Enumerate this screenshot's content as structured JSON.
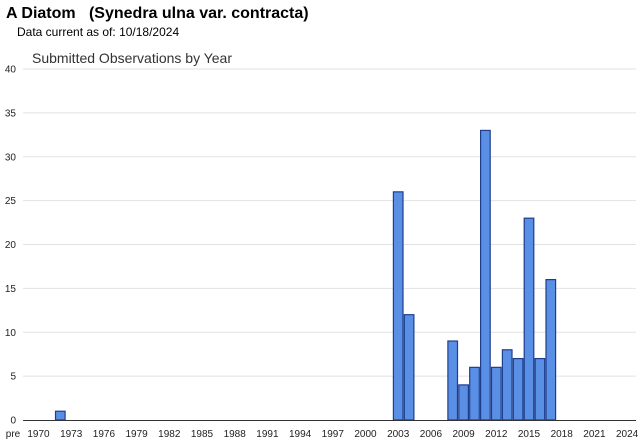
{
  "header": {
    "title": "A Diatom   (Synedra ulna var. contracta)",
    "data_current_label": "Data current as of:",
    "data_current_date": "10/18/2024"
  },
  "chart_data": {
    "type": "bar",
    "title": "Submitted Observations by Year",
    "xlabel": "",
    "ylabel": "",
    "ylim": [
      0,
      40
    ],
    "yticks": [
      0,
      5,
      10,
      15,
      20,
      25,
      30,
      35,
      40
    ],
    "grid": true,
    "legend": "none",
    "bar_color": "#5a8fe6",
    "bar_edge_color": "#1f3d8a",
    "xtick_labels": [
      "pre",
      "1970",
      "1973",
      "1976",
      "1979",
      "1982",
      "1985",
      "1988",
      "1991",
      "1994",
      "1997",
      "2000",
      "2003",
      "2006",
      "2009",
      "2012",
      "2015",
      "2018",
      "2021",
      "2024"
    ],
    "categories": [
      "pre",
      "1970",
      "1971",
      "1972",
      "1973",
      "1974",
      "1975",
      "1976",
      "1977",
      "1978",
      "1979",
      "1980",
      "1981",
      "1982",
      "1983",
      "1984",
      "1985",
      "1986",
      "1987",
      "1988",
      "1989",
      "1990",
      "1991",
      "1992",
      "1993",
      "1994",
      "1995",
      "1996",
      "1997",
      "1998",
      "1999",
      "2000",
      "2001",
      "2002",
      "2003",
      "2004",
      "2005",
      "2006",
      "2007",
      "2008",
      "2009",
      "2010",
      "2011",
      "2012",
      "2013",
      "2014",
      "2015",
      "2016",
      "2017",
      "2018",
      "2019",
      "2020",
      "2021",
      "2022",
      "2023",
      "2024"
    ],
    "values": [
      0,
      0,
      0,
      1,
      0,
      0,
      0,
      0,
      0,
      0,
      0,
      0,
      0,
      0,
      0,
      0,
      0,
      0,
      0,
      0,
      0,
      0,
      0,
      0,
      0,
      0,
      0,
      0,
      0,
      0,
      0,
      0,
      0,
      0,
      26,
      12,
      0,
      0,
      0,
      9,
      4,
      6,
      33,
      6,
      8,
      7,
      23,
      7,
      16,
      0,
      0,
      0,
      0,
      0,
      0,
      0
    ]
  }
}
